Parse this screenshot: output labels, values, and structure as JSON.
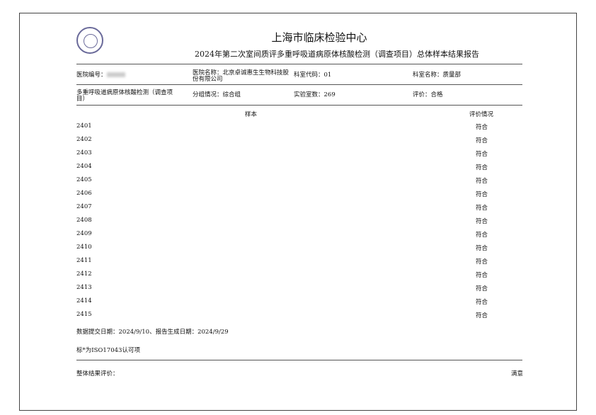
{
  "header": {
    "org": "上海市临床检验中心",
    "subtitle": "2024年第二次室间质评多重呼吸道病原体核酸检测（调查项目）总体样本结果报告"
  },
  "info": {
    "hospital_no_label": "医院编号：",
    "hospital_name": "医院名称：北京卓诚惠生生物科技股",
    "hospital_name_cont": "份有限公司",
    "dept_code": "科室代码：01",
    "dept_name": "科室名称：质量部",
    "project": "多重呼吸道病原体核酸检测（调查项",
    "project_cont": "目）",
    "group": "分组情况：综合组",
    "lab_count": "实验室数：269",
    "evaluation": "评价：合格"
  },
  "table": {
    "col_sample": "样本",
    "col_eval": "评价情况",
    "rows": [
      {
        "id": "2401",
        "eval": "符合"
      },
      {
        "id": "2402",
        "eval": "符合"
      },
      {
        "id": "2403",
        "eval": "符合"
      },
      {
        "id": "2404",
        "eval": "符合"
      },
      {
        "id": "2405",
        "eval": "符合"
      },
      {
        "id": "2406",
        "eval": "符合"
      },
      {
        "id": "2407",
        "eval": "符合"
      },
      {
        "id": "2408",
        "eval": "符合"
      },
      {
        "id": "2409",
        "eval": "符合"
      },
      {
        "id": "2410",
        "eval": "符合"
      },
      {
        "id": "2411",
        "eval": "符合"
      },
      {
        "id": "2412",
        "eval": "符合"
      },
      {
        "id": "2413",
        "eval": "符合"
      },
      {
        "id": "2414",
        "eval": "符合"
      },
      {
        "id": "2415",
        "eval": "符合"
      }
    ]
  },
  "footer": {
    "dates": "数据提交日期：2024/9/10、报告生成日期：2024/9/29",
    "note": "标*为ISO17043认可项",
    "overall_label": "整体结果评价：",
    "overall_value": "满意"
  }
}
